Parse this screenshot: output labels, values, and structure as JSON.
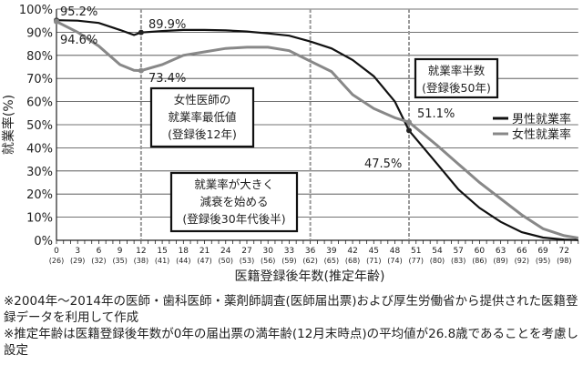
{
  "chart_data": {
    "type": "line",
    "ylabel": "就業率(%)",
    "xlabel": "医籍登録後年数(推定年齢)",
    "ylim": [
      0,
      100
    ],
    "xlim": [
      0,
      74
    ],
    "grid": true,
    "legend_position": "right",
    "y_ticks": [
      "0%",
      "10%",
      "20%",
      "30%",
      "40%",
      "50%",
      "60%",
      "70%",
      "80%",
      "90%",
      "100%"
    ],
    "x_ticks": [
      [
        "0",
        "(26)"
      ],
      [
        "3",
        "(29)"
      ],
      [
        "6",
        "(32)"
      ],
      [
        "9",
        "(35)"
      ],
      [
        "12",
        "(38)"
      ],
      [
        "15",
        "(41)"
      ],
      [
        "18",
        "(44)"
      ],
      [
        "21",
        "(47)"
      ],
      [
        "24",
        "(50)"
      ],
      [
        "27",
        "(53)"
      ],
      [
        "30",
        "(56)"
      ],
      [
        "33",
        "(59)"
      ],
      [
        "36",
        "(62)"
      ],
      [
        "39",
        "(65)"
      ],
      [
        "42",
        "(68)"
      ],
      [
        "45",
        "(71)"
      ],
      [
        "48",
        "(74)"
      ],
      [
        "51",
        "(77)"
      ],
      [
        "54",
        "(80)"
      ],
      [
        "57",
        "(83)"
      ],
      [
        "60",
        "(86)"
      ],
      [
        "63",
        "(89)"
      ],
      [
        "66",
        "(92)"
      ],
      [
        "69",
        "(95)"
      ],
      [
        "72",
        "(98)"
      ]
    ],
    "series": [
      {
        "name": "男性就業率",
        "color": "#111111",
        "x": [
          0,
          3,
          6,
          9,
          11,
          12,
          15,
          18,
          21,
          24,
          27,
          30,
          33,
          36,
          39,
          42,
          45,
          48,
          50,
          54,
          57,
          60,
          63,
          66,
          69,
          72,
          74
        ],
        "values": [
          95.2,
          95,
          94,
          91,
          88.8,
          89.9,
          90.5,
          91,
          91,
          90.8,
          90.3,
          89.5,
          88.5,
          86,
          83,
          78,
          71,
          60,
          47.5,
          33,
          22,
          14,
          8,
          3.5,
          1.2,
          0.3,
          0.1
        ]
      },
      {
        "name": "女性就業率",
        "color": "#888888",
        "x": [
          0,
          3,
          6,
          9,
          11,
          12,
          15,
          18,
          21,
          24,
          27,
          30,
          33,
          36,
          39,
          42,
          45,
          48,
          50,
          54,
          57,
          60,
          63,
          66,
          69,
          72,
          74
        ],
        "values": [
          94.6,
          90,
          84,
          76,
          73.5,
          73.4,
          76,
          80,
          81.5,
          83,
          83.5,
          83.5,
          82,
          77.5,
          73,
          63,
          57,
          53,
          51.1,
          41,
          33,
          25,
          18,
          11,
          5,
          2,
          1
        ]
      }
    ],
    "dashed_lines_x": [
      12,
      36,
      50
    ],
    "annotations": [
      {
        "text": "95.2%"
      },
      {
        "text": "94.6%"
      },
      {
        "text": "89.9%"
      },
      {
        "text": "73.4%"
      },
      {
        "text": "51.1%"
      },
      {
        "text": "47.5%"
      }
    ],
    "boxes": [
      [
        "女性医師の",
        "就業率最低値",
        "(登録後12年)"
      ],
      [
        "就業率が大きく",
        "減衰を始める",
        "(登録後30年代後半)"
      ],
      [
        "就業率半数",
        "(登録後50年)"
      ]
    ]
  },
  "notes": [
    "※2004年～2014年の医師・歯科医師・薬剤師調査(医師届出票)および厚生労働省から提供された医籍登録データを利用して作成",
    "※推定年齢は医籍登録後年数が0年の届出票の満年齢(12月末時点)の平均値が26.8歳であることを考慮し設定"
  ]
}
